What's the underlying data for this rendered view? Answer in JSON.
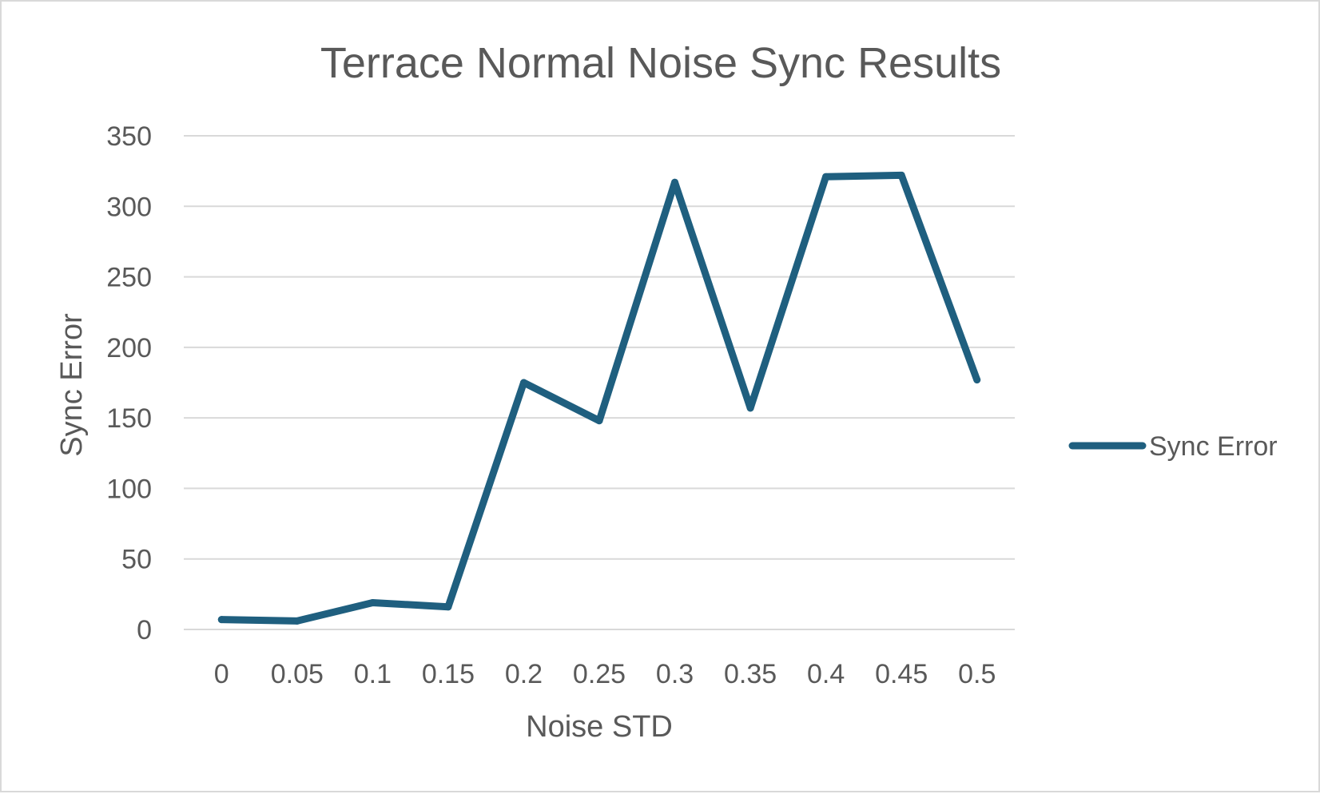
{
  "chart_data": {
    "type": "line",
    "title": "Terrace Normal Noise Sync Results",
    "xlabel": "Noise STD",
    "ylabel": "Sync Error",
    "categories": [
      "0",
      "0.05",
      "0.1",
      "0.15",
      "0.2",
      "0.25",
      "0.3",
      "0.35",
      "0.4",
      "0.45",
      "0.5"
    ],
    "series": [
      {
        "name": "Sync Error",
        "values": [
          7,
          6,
          19,
          16,
          175,
          148,
          317,
          157,
          321,
          322,
          177
        ],
        "color": "#1f5f7f"
      }
    ],
    "ylim": [
      0,
      350
    ],
    "yticks": [
      "0",
      "50",
      "100",
      "150",
      "200",
      "250",
      "300",
      "350"
    ],
    "grid": "horizontal",
    "legend": "right"
  }
}
